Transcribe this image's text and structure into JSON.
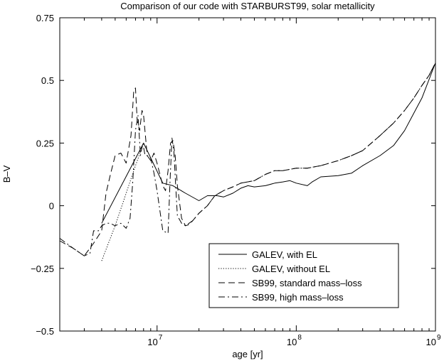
{
  "chart_data": {
    "type": "line",
    "title": "Comparison of our code with STARBURST99, solar metallicity",
    "xlabel": "age [yr]",
    "ylabel": "B–V",
    "xscale": "log",
    "xlim": [
      2000000,
      1000000000
    ],
    "ylim": [
      -0.5,
      0.75
    ],
    "xticks": [
      {
        "value": 10000000,
        "base": "10",
        "exp": "7"
      },
      {
        "value": 100000000,
        "base": "10",
        "exp": "8"
      },
      {
        "value": 1000000000,
        "base": "10",
        "exp": "9"
      }
    ],
    "yticks": [
      {
        "value": -0.5,
        "label": "−0.5"
      },
      {
        "value": -0.25,
        "label": "−0.25"
      },
      {
        "value": 0,
        "label": "0"
      },
      {
        "value": 0.25,
        "label": "0.25"
      },
      {
        "value": 0.5,
        "label": "0.5"
      },
      {
        "value": 0.75,
        "label": "0.75"
      }
    ],
    "grid": false,
    "legend_position": "bottom-right",
    "series": [
      {
        "name": "GALEV, with EL",
        "dash": "solid",
        "x": [
          4000000,
          8000000,
          11000000,
          13000000,
          16000000,
          20000000,
          23000000,
          27000000,
          30000000,
          35000000,
          40000000,
          45000000,
          50000000,
          60000000,
          70000000,
          80000000,
          90000000,
          100000000,
          120000000,
          130000000,
          150000000,
          200000000,
          250000000,
          300000000,
          400000000,
          500000000,
          600000000,
          700000000,
          800000000,
          1000000000
        ],
        "y": [
          -0.07,
          0.25,
          0.09,
          0.08,
          0.05,
          0.02,
          0.04,
          0.04,
          0.035,
          0.05,
          0.07,
          0.08,
          0.075,
          0.08,
          0.09,
          0.095,
          0.1,
          0.09,
          0.08,
          0.095,
          0.115,
          0.12,
          0.13,
          0.16,
          0.2,
          0.24,
          0.3,
          0.37,
          0.43,
          0.57
        ]
      },
      {
        "name": "GALEV, without EL",
        "dash": "dotted",
        "x": [
          4000000,
          5000000,
          6000000,
          7000000,
          8000000
        ],
        "y": [
          -0.22,
          -0.08,
          0.05,
          0.16,
          0.25
        ]
      },
      {
        "name": "SB99, standard mass–loss",
        "dash": "dashed",
        "x": [
          2000000,
          2500000,
          3000000,
          3500000,
          4000000,
          4300000,
          4600000,
          5000000,
          5500000,
          6000000,
          6500000,
          6800000,
          7000000,
          7200000,
          7500000,
          7800000,
          8000000,
          8500000,
          9000000,
          9500000,
          10000000,
          11000000,
          11500000,
          12000000,
          12500000,
          13000000,
          13500000,
          14000000,
          15000000,
          16000000,
          17000000,
          18000000,
          20000000,
          23000000,
          26000000,
          30000000,
          35000000,
          40000000,
          50000000,
          60000000,
          70000000,
          80000000,
          100000000,
          120000000,
          150000000,
          200000000,
          250000000,
          300000000,
          400000000,
          500000000,
          600000000,
          700000000,
          800000000,
          900000000,
          1000000000
        ],
        "y": [
          -0.14,
          -0.17,
          -0.2,
          -0.15,
          -0.1,
          0.05,
          0.12,
          0.2,
          0.21,
          0.17,
          0.28,
          0.46,
          0.47,
          0.34,
          0.3,
          0.38,
          0.36,
          0.2,
          0.18,
          0.21,
          0.17,
          0.08,
          0.06,
          0.14,
          0.25,
          0.26,
          0.2,
          0.08,
          -0.05,
          -0.08,
          -0.075,
          -0.06,
          -0.03,
          0.0,
          0.04,
          0.06,
          0.075,
          0.09,
          0.1,
          0.125,
          0.14,
          0.14,
          0.15,
          0.15,
          0.16,
          0.18,
          0.2,
          0.22,
          0.28,
          0.33,
          0.38,
          0.43,
          0.48,
          0.52,
          0.57
        ]
      },
      {
        "name": "SB99, high mass–loss",
        "dash": "dashdot",
        "x": [
          2000000,
          2500000,
          3000000,
          3300000,
          3500000,
          3800000,
          4000000,
          4300000,
          4600000,
          5000000,
          5500000,
          6000000,
          6400000,
          6700000,
          7000000,
          7300000,
          7600000,
          7900000,
          8200000,
          8600000,
          9000000,
          9500000,
          10000000,
          11000000,
          12000000,
          12400000,
          12800000,
          13200000,
          13600000,
          14000000,
          15000000,
          16000000,
          18000000,
          20000000,
          23000000,
          26000000,
          30000000,
          35000000,
          40000000,
          50000000,
          60000000,
          70000000,
          80000000,
          100000000,
          120000000,
          150000000,
          200000000,
          250000000,
          300000000,
          400000000,
          500000000,
          600000000,
          700000000,
          800000000,
          900000000,
          1000000000
        ],
        "y": [
          -0.13,
          -0.17,
          -0.2,
          -0.19,
          -0.1,
          -0.1,
          -0.08,
          -0.07,
          -0.07,
          -0.08,
          -0.07,
          -0.09,
          -0.05,
          0.1,
          0.3,
          0.36,
          0.2,
          0.25,
          0.2,
          0.2,
          0.19,
          0.13,
          0.06,
          -0.1,
          -0.11,
          0.1,
          0.27,
          0.22,
          0.08,
          -0.04,
          -0.07,
          -0.08,
          -0.06,
          -0.03,
          0.0,
          0.04,
          0.06,
          0.075,
          0.09,
          0.1,
          0.125,
          0.14,
          0.14,
          0.15,
          0.15,
          0.16,
          0.18,
          0.2,
          0.22,
          0.28,
          0.33,
          0.38,
          0.43,
          0.48,
          0.52,
          0.57
        ]
      }
    ]
  }
}
